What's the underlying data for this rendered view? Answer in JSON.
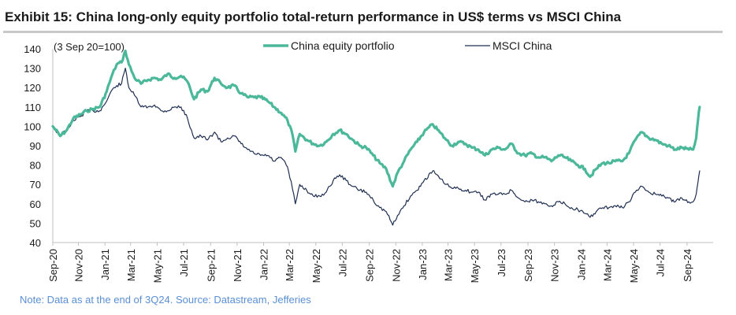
{
  "header": {
    "title": "Exhibit 15: China long-only equity portfolio total-return performance in US$ terms vs MSCI China"
  },
  "footer": {
    "note": "Note: Data as at the end of 3Q24. Source: Datastream, Jefferies"
  },
  "colors": {
    "portfolio": "#4cb89a",
    "msci": "#1f2f52",
    "axis": "#bfbfbf",
    "text": "#1a1a1a",
    "note": "#5b8fd4"
  },
  "chart_data": {
    "type": "line",
    "title": "Exhibit 15: China long-only equity portfolio total-return performance in US$ terms vs MSCI China",
    "annotation": "(3 Sep 20=100)",
    "ylim": [
      40,
      140
    ],
    "yticks": [
      "40",
      "50",
      "60",
      "70",
      "80",
      "90",
      "100",
      "110",
      "120",
      "130",
      "140"
    ],
    "xlim": [
      "2020-09-03",
      "2024-10-31"
    ],
    "xticks": [
      {
        "date": "2020-09-01",
        "label": "Sep-20"
      },
      {
        "date": "2020-11-01",
        "label": "Nov-20"
      },
      {
        "date": "2021-01-01",
        "label": "Jan-21"
      },
      {
        "date": "2021-03-01",
        "label": "Mar-21"
      },
      {
        "date": "2021-05-01",
        "label": "May-21"
      },
      {
        "date": "2021-07-01",
        "label": "Jul-21"
      },
      {
        "date": "2021-09-01",
        "label": "Sep-21"
      },
      {
        "date": "2021-11-01",
        "label": "Nov-21"
      },
      {
        "date": "2022-01-01",
        "label": "Jan-22"
      },
      {
        "date": "2022-03-01",
        "label": "Mar-22"
      },
      {
        "date": "2022-05-01",
        "label": "May-22"
      },
      {
        "date": "2022-07-01",
        "label": "Jul-22"
      },
      {
        "date": "2022-09-01",
        "label": "Sep-22"
      },
      {
        "date": "2022-11-01",
        "label": "Nov-22"
      },
      {
        "date": "2023-01-01",
        "label": "Jan-23"
      },
      {
        "date": "2023-03-01",
        "label": "Mar-23"
      },
      {
        "date": "2023-05-01",
        "label": "May-23"
      },
      {
        "date": "2023-07-01",
        "label": "Jul-23"
      },
      {
        "date": "2023-09-01",
        "label": "Sep-23"
      },
      {
        "date": "2023-11-01",
        "label": "Nov-23"
      },
      {
        "date": "2024-01-01",
        "label": "Jan-24"
      },
      {
        "date": "2024-03-01",
        "label": "Mar-24"
      },
      {
        "date": "2024-05-01",
        "label": "May-24"
      },
      {
        "date": "2024-07-01",
        "label": "Jul-24"
      },
      {
        "date": "2024-09-01",
        "label": "Sep-24"
      }
    ],
    "grid": false,
    "legend_position": "top-center",
    "series": [
      {
        "name": "China equity portfolio",
        "color": "#4cb89a",
        "points": [
          [
            "2020-09-03",
            100
          ],
          [
            "2020-09-20",
            95
          ],
          [
            "2020-10-05",
            98
          ],
          [
            "2020-10-20",
            104
          ],
          [
            "2020-11-05",
            106
          ],
          [
            "2020-11-20",
            108
          ],
          [
            "2020-12-05",
            109
          ],
          [
            "2020-12-20",
            110
          ],
          [
            "2021-01-05",
            118
          ],
          [
            "2021-01-15",
            125
          ],
          [
            "2021-01-28",
            132
          ],
          [
            "2021-02-08",
            133
          ],
          [
            "2021-02-17",
            139
          ],
          [
            "2021-02-25",
            132
          ],
          [
            "2021-03-10",
            125
          ],
          [
            "2021-03-25",
            122
          ],
          [
            "2021-04-10",
            124
          ],
          [
            "2021-04-25",
            125
          ],
          [
            "2021-05-10",
            124
          ],
          [
            "2021-05-25",
            127
          ],
          [
            "2021-06-10",
            125
          ],
          [
            "2021-06-25",
            126
          ],
          [
            "2021-07-10",
            123
          ],
          [
            "2021-07-25",
            114
          ],
          [
            "2021-08-10",
            119
          ],
          [
            "2021-08-25",
            118
          ],
          [
            "2021-09-10",
            125
          ],
          [
            "2021-09-25",
            122
          ],
          [
            "2021-10-10",
            120
          ],
          [
            "2021-10-25",
            121
          ],
          [
            "2021-11-10",
            117
          ],
          [
            "2021-11-25",
            115
          ],
          [
            "2021-12-10",
            115
          ],
          [
            "2021-12-25",
            115
          ],
          [
            "2022-01-10",
            113
          ],
          [
            "2022-01-25",
            110
          ],
          [
            "2022-02-10",
            107
          ],
          [
            "2022-02-25",
            103
          ],
          [
            "2022-03-08",
            96
          ],
          [
            "2022-03-15",
            87
          ],
          [
            "2022-03-25",
            96
          ],
          [
            "2022-04-10",
            93
          ],
          [
            "2022-04-25",
            91
          ],
          [
            "2022-05-10",
            90
          ],
          [
            "2022-05-25",
            92
          ],
          [
            "2022-06-10",
            96
          ],
          [
            "2022-06-25",
            98
          ],
          [
            "2022-07-10",
            96
          ],
          [
            "2022-07-25",
            93
          ],
          [
            "2022-08-10",
            90
          ],
          [
            "2022-08-25",
            89
          ],
          [
            "2022-09-10",
            85
          ],
          [
            "2022-09-25",
            81
          ],
          [
            "2022-10-10",
            78
          ],
          [
            "2022-10-25",
            69
          ],
          [
            "2022-11-05",
            76
          ],
          [
            "2022-11-20",
            82
          ],
          [
            "2022-12-05",
            88
          ],
          [
            "2022-12-20",
            92
          ],
          [
            "2023-01-05",
            97
          ],
          [
            "2023-01-25",
            101
          ],
          [
            "2023-02-10",
            97
          ],
          [
            "2023-02-25",
            93
          ],
          [
            "2023-03-10",
            90
          ],
          [
            "2023-03-25",
            92
          ],
          [
            "2023-04-10",
            91
          ],
          [
            "2023-04-25",
            89
          ],
          [
            "2023-05-10",
            88
          ],
          [
            "2023-05-25",
            85
          ],
          [
            "2023-06-10",
            88
          ],
          [
            "2023-06-25",
            89
          ],
          [
            "2023-07-10",
            88
          ],
          [
            "2023-07-25",
            91
          ],
          [
            "2023-08-10",
            86
          ],
          [
            "2023-08-25",
            85
          ],
          [
            "2023-09-10",
            86
          ],
          [
            "2023-09-25",
            84
          ],
          [
            "2023-10-10",
            84
          ],
          [
            "2023-10-25",
            82
          ],
          [
            "2023-11-10",
            85
          ],
          [
            "2023-11-25",
            84
          ],
          [
            "2023-12-10",
            82
          ],
          [
            "2023-12-25",
            80
          ],
          [
            "2024-01-10",
            78
          ],
          [
            "2024-01-22",
            74
          ],
          [
            "2024-02-05",
            78
          ],
          [
            "2024-02-20",
            81
          ],
          [
            "2024-03-05",
            81
          ],
          [
            "2024-03-20",
            82
          ],
          [
            "2024-04-05",
            82
          ],
          [
            "2024-04-20",
            86
          ],
          [
            "2024-05-05",
            93
          ],
          [
            "2024-05-20",
            97
          ],
          [
            "2024-06-05",
            94
          ],
          [
            "2024-06-20",
            93
          ],
          [
            "2024-07-05",
            91
          ],
          [
            "2024-07-20",
            90
          ],
          [
            "2024-08-05",
            88
          ],
          [
            "2024-08-20",
            89
          ],
          [
            "2024-09-05",
            88
          ],
          [
            "2024-09-15",
            88
          ],
          [
            "2024-09-22",
            94
          ],
          [
            "2024-09-26",
            103
          ],
          [
            "2024-09-30",
            110
          ]
        ]
      },
      {
        "name": "MSCI China",
        "color": "#1f2f52",
        "points": [
          [
            "2020-09-03",
            100
          ],
          [
            "2020-09-20",
            95
          ],
          [
            "2020-10-05",
            98
          ],
          [
            "2020-10-20",
            103
          ],
          [
            "2020-11-05",
            105
          ],
          [
            "2020-11-20",
            108
          ],
          [
            "2020-12-05",
            108
          ],
          [
            "2020-12-20",
            108
          ],
          [
            "2021-01-05",
            113
          ],
          [
            "2021-01-15",
            118
          ],
          [
            "2021-01-28",
            121
          ],
          [
            "2021-02-08",
            122
          ],
          [
            "2021-02-17",
            130
          ],
          [
            "2021-02-25",
            120
          ],
          [
            "2021-03-10",
            116
          ],
          [
            "2021-03-25",
            110
          ],
          [
            "2021-04-10",
            110
          ],
          [
            "2021-04-25",
            111
          ],
          [
            "2021-05-10",
            108
          ],
          [
            "2021-05-25",
            108
          ],
          [
            "2021-06-10",
            110
          ],
          [
            "2021-06-25",
            110
          ],
          [
            "2021-07-10",
            104
          ],
          [
            "2021-07-25",
            94
          ],
          [
            "2021-08-10",
            95
          ],
          [
            "2021-08-25",
            93
          ],
          [
            "2021-09-10",
            97
          ],
          [
            "2021-09-25",
            92
          ],
          [
            "2021-10-10",
            94
          ],
          [
            "2021-10-25",
            95
          ],
          [
            "2021-11-10",
            91
          ],
          [
            "2021-11-25",
            88
          ],
          [
            "2021-12-10",
            86
          ],
          [
            "2021-12-25",
            85
          ],
          [
            "2022-01-10",
            85
          ],
          [
            "2022-01-25",
            82
          ],
          [
            "2022-02-10",
            84
          ],
          [
            "2022-02-25",
            79
          ],
          [
            "2022-03-08",
            68
          ],
          [
            "2022-03-15",
            60
          ],
          [
            "2022-03-25",
            70
          ],
          [
            "2022-04-10",
            67
          ],
          [
            "2022-04-25",
            64
          ],
          [
            "2022-05-10",
            64
          ],
          [
            "2022-05-25",
            66
          ],
          [
            "2022-06-10",
            72
          ],
          [
            "2022-06-25",
            75
          ],
          [
            "2022-07-10",
            72
          ],
          [
            "2022-07-25",
            69
          ],
          [
            "2022-08-10",
            67
          ],
          [
            "2022-08-25",
            66
          ],
          [
            "2022-09-10",
            62
          ],
          [
            "2022-09-25",
            58
          ],
          [
            "2022-10-10",
            56
          ],
          [
            "2022-10-25",
            49
          ],
          [
            "2022-11-05",
            54
          ],
          [
            "2022-11-20",
            59
          ],
          [
            "2022-12-05",
            64
          ],
          [
            "2022-12-20",
            67
          ],
          [
            "2023-01-05",
            72
          ],
          [
            "2023-01-25",
            77
          ],
          [
            "2023-02-10",
            73
          ],
          [
            "2023-02-25",
            70
          ],
          [
            "2023-03-10",
            68
          ],
          [
            "2023-03-25",
            68
          ],
          [
            "2023-04-10",
            67
          ],
          [
            "2023-04-25",
            66
          ],
          [
            "2023-05-10",
            66
          ],
          [
            "2023-05-25",
            62
          ],
          [
            "2023-06-10",
            65
          ],
          [
            "2023-06-25",
            65
          ],
          [
            "2023-07-10",
            65
          ],
          [
            "2023-07-25",
            67
          ],
          [
            "2023-08-10",
            63
          ],
          [
            "2023-08-25",
            61
          ],
          [
            "2023-09-10",
            62
          ],
          [
            "2023-09-25",
            61
          ],
          [
            "2023-10-10",
            60
          ],
          [
            "2023-10-25",
            59
          ],
          [
            "2023-11-10",
            61
          ],
          [
            "2023-11-25",
            60
          ],
          [
            "2023-12-10",
            58
          ],
          [
            "2023-12-25",
            57
          ],
          [
            "2024-01-10",
            55
          ],
          [
            "2024-01-22",
            53
          ],
          [
            "2024-02-05",
            56
          ],
          [
            "2024-02-20",
            58
          ],
          [
            "2024-03-05",
            58
          ],
          [
            "2024-03-20",
            59
          ],
          [
            "2024-04-05",
            58
          ],
          [
            "2024-04-20",
            61
          ],
          [
            "2024-05-05",
            66
          ],
          [
            "2024-05-20",
            69
          ],
          [
            "2024-06-05",
            66
          ],
          [
            "2024-06-20",
            65
          ],
          [
            "2024-07-05",
            64
          ],
          [
            "2024-07-20",
            63
          ],
          [
            "2024-08-05",
            61
          ],
          [
            "2024-08-20",
            63
          ],
          [
            "2024-09-05",
            61
          ],
          [
            "2024-09-15",
            61
          ],
          [
            "2024-09-22",
            65
          ],
          [
            "2024-09-26",
            71
          ],
          [
            "2024-09-30",
            77
          ]
        ]
      }
    ]
  }
}
